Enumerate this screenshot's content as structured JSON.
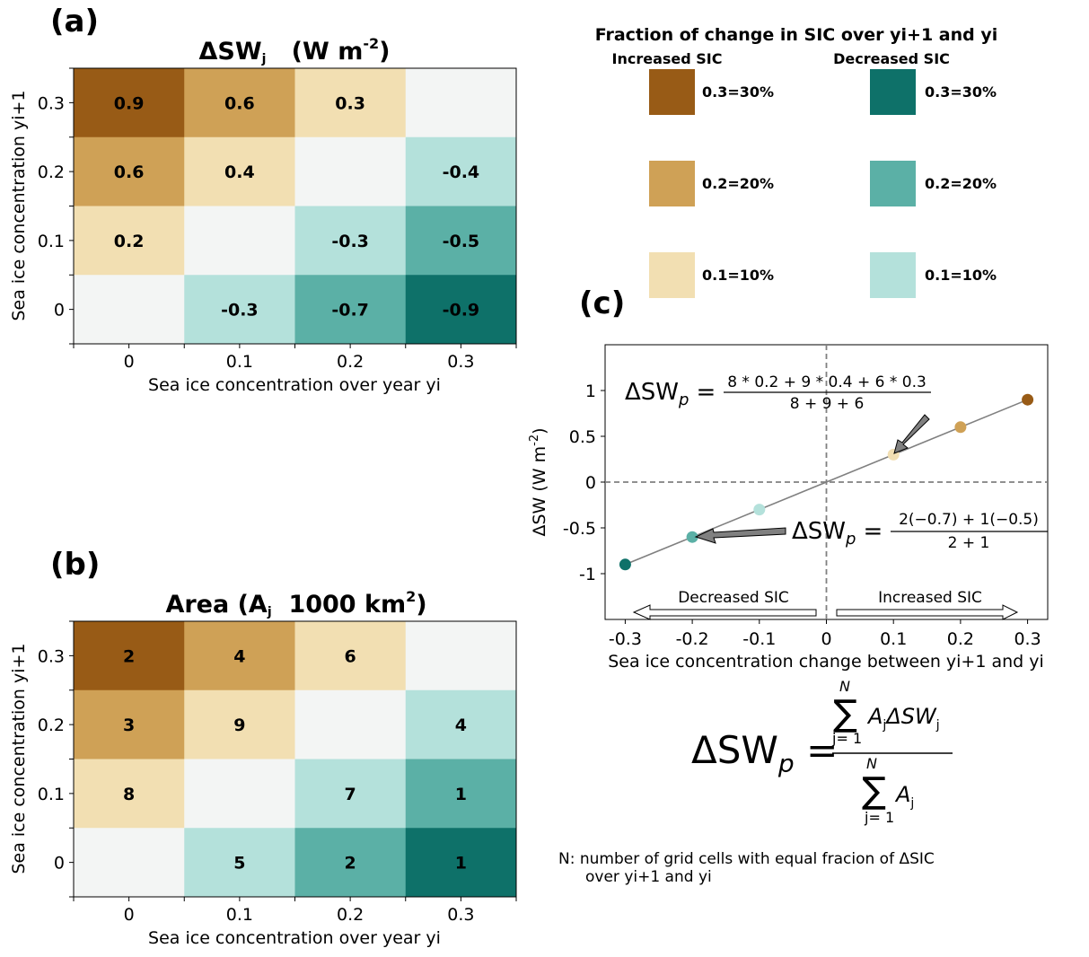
{
  "chart_data": [
    {
      "panel": "(a)",
      "type": "heatmap",
      "title": "ΔSWj (W m-2)",
      "title_parts": {
        "main": "ΔSW",
        "sub": "j",
        "unit": "(W m",
        "sup": "-2",
        "close": ")"
      },
      "xlabel": "Sea ice concentration over year yi",
      "ylabel": "Sea ice concentration yi+1",
      "x_ticks": [
        "0",
        "0.1",
        "0.2",
        "0.3"
      ],
      "y_ticks": [
        "0.3",
        "0.2",
        "0.1",
        "0"
      ],
      "rows": [
        {
          "y": "0.3",
          "values": [
            0.9,
            0.6,
            0.3,
            null
          ],
          "labels": [
            "0.9",
            "0.6",
            "0.3",
            ""
          ]
        },
        {
          "y": "0.2",
          "values": [
            0.6,
            0.4,
            null,
            -0.4
          ],
          "labels": [
            "0.6",
            "0.4",
            "",
            "-0.4"
          ]
        },
        {
          "y": "0.1",
          "values": [
            0.2,
            null,
            -0.3,
            -0.5
          ],
          "labels": [
            "0.2",
            "",
            "-0.3",
            "-0.5"
          ]
        },
        {
          "y": "0",
          "values": [
            null,
            -0.3,
            -0.7,
            -0.9
          ],
          "labels": [
            "",
            "-0.3",
            "-0.7",
            "-0.9"
          ]
        }
      ],
      "color_classes": [
        [
          0.3,
          0.2,
          0.1,
          0
        ],
        [
          0.2,
          0.1,
          0,
          -0.1
        ],
        [
          0.1,
          0,
          -0.1,
          -0.2
        ],
        [
          0,
          -0.1,
          -0.2,
          -0.3
        ]
      ]
    },
    {
      "panel": "(b)",
      "type": "heatmap",
      "title": "Area (Aj 1000 km2)",
      "title_parts": {
        "main": "Area (A",
        "sub": "j",
        "unit": "  1000 km",
        "sup": "2",
        "close": ")"
      },
      "xlabel": "Sea ice concentration over year yi",
      "ylabel": "Sea ice concentration yi+1",
      "x_ticks": [
        "0",
        "0.1",
        "0.2",
        "0.3"
      ],
      "y_ticks": [
        "0.3",
        "0.2",
        "0.1",
        "0"
      ],
      "rows": [
        {
          "y": "0.3",
          "values": [
            2,
            4,
            6,
            null
          ],
          "labels": [
            "2",
            "4",
            "6",
            ""
          ]
        },
        {
          "y": "0.2",
          "values": [
            3,
            9,
            null,
            4
          ],
          "labels": [
            "3",
            "9",
            "",
            "4"
          ]
        },
        {
          "y": "0.1",
          "values": [
            8,
            null,
            7,
            1
          ],
          "labels": [
            "8",
            "",
            "7",
            "1"
          ]
        },
        {
          "y": "0",
          "values": [
            null,
            5,
            2,
            1
          ],
          "labels": [
            "",
            "5",
            "2",
            "1"
          ]
        }
      ],
      "color_classes": [
        [
          0.3,
          0.2,
          0.1,
          0
        ],
        [
          0.2,
          0.1,
          0,
          -0.1
        ],
        [
          0.1,
          0,
          -0.1,
          -0.2
        ],
        [
          0,
          -0.1,
          -0.2,
          -0.3
        ]
      ]
    },
    {
      "panel": "(c)",
      "type": "scatter",
      "xlabel": "Sea ice concentration change between yi+1 and yi",
      "ylabel": "ΔSW (W m-2)",
      "ylabel_parts": {
        "main": "ΔSW   (W m",
        "sup": "-2",
        "close": ")"
      },
      "xlim": [
        -0.33,
        0.33
      ],
      "ylim": [
        -1.5,
        1.5
      ],
      "x_ticks": [
        -0.3,
        -0.2,
        -0.1,
        0,
        0.1,
        0.2,
        0.3
      ],
      "x_tick_labels": [
        "-0.3",
        "-0.2",
        "-0.1",
        "0",
        "0.1",
        "0.2",
        "0.3"
      ],
      "y_ticks": [
        1,
        0.5,
        0,
        -0.5,
        -1
      ],
      "y_tick_labels": [
        "1",
        "0.5",
        "0",
        "-0.5",
        "-1"
      ],
      "points": [
        {
          "x": -0.3,
          "y": -0.9,
          "class": -0.3
        },
        {
          "x": -0.2,
          "y": -0.6,
          "class": -0.2
        },
        {
          "x": -0.1,
          "y": -0.3,
          "class": -0.1
        },
        {
          "x": 0.1,
          "y": 0.3,
          "class": 0.1
        },
        {
          "x": 0.2,
          "y": 0.6,
          "class": 0.2
        },
        {
          "x": 0.3,
          "y": 0.9,
          "class": 0.3
        }
      ],
      "fit_line": {
        "x": [
          -0.3,
          0.3
        ],
        "y": [
          -0.9,
          0.9
        ]
      },
      "reference_lines": {
        "x": 0,
        "y": 0
      },
      "annotations": {
        "upper_eq": {
          "lhs": "ΔSW",
          "lhs_sub": "p",
          "eq": "=",
          "numerator": "8 * 0.2 + 9 * 0.4 + 6 * 0.3",
          "denominator": "8 + 9 + 6",
          "arrow_to": {
            "x": 0.1,
            "y": 0.3
          }
        },
        "lower_eq": {
          "lhs": "ΔSW",
          "lhs_sub": "p",
          "eq": "=",
          "numerator": "2(−0.7) + 1(−0.5)",
          "denominator": "2 + 1",
          "arrow_to": {
            "x": -0.2,
            "y": -0.6
          }
        },
        "decreased": "Decreased SIC",
        "increased": "Increased SIC"
      }
    }
  ],
  "panel_labels": {
    "a": "(a)",
    "b": "(b)",
    "c": "(c)"
  },
  "legend": {
    "title": "Fraction of change in SIC over yi+1 and yi",
    "increased_title": "Increased SIC",
    "decreased_title": "Decreased SIC",
    "increased": [
      {
        "label": "0.3=30%",
        "color": "#985b16"
      },
      {
        "label": "0.2=20%",
        "color": "#cfa156"
      },
      {
        "label": "0.1=10%",
        "color": "#f2dfb2"
      }
    ],
    "decreased": [
      {
        "label": "0.3=30%",
        "color": "#0e7169"
      },
      {
        "label": "0.2=20%",
        "color": "#5bb0a6"
      },
      {
        "label": "0.1=10%",
        "color": "#b4e1db"
      }
    ]
  },
  "colors": {
    "0.3": "#985b16",
    "0.2": "#cfa156",
    "0.1": "#f2dfb2",
    "0": "#f3f5f4",
    "-0.1": "#b4e1db",
    "-0.2": "#5bb0a6",
    "-0.3": "#0e7169",
    "line": "#808080",
    "arrow_fill": "#808080"
  },
  "formula": {
    "lhs": "ΔSW",
    "lhs_sub": "p",
    "eq": "=",
    "sum_upper": "N",
    "sum_lower": "j= 1",
    "numerator_term": "A",
    "numerator_term_sub": "j",
    "numerator_term2": "ΔSW",
    "numerator_term2_sub": "j",
    "denominator_term": "A",
    "denominator_term_sub": "j"
  },
  "note": {
    "line1": "N: number of grid cells with equal fracion of ΔSIC",
    "line2": "over yi+1 and yi"
  }
}
